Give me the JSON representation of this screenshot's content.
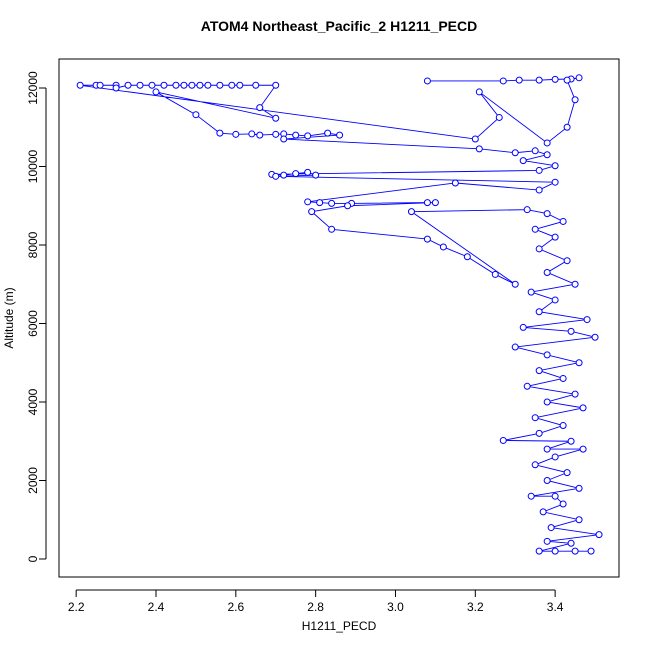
{
  "chart_data": {
    "type": "line",
    "title": "ATOM4 Northeast_Pacific_2 H1211_PECD",
    "x_label": "H1211_PECD",
    "y_label": "Altitude (m)",
    "color": "#0000ff",
    "markers": true,
    "xlim": [
      2.157,
      3.56
    ],
    "ylim": [
      -459,
      12739
    ],
    "xticks": [
      2.2,
      2.4,
      2.6,
      2.8,
      {
        "value": 3,
        "label": "3.0"
      },
      3.2,
      3.4
    ],
    "yticks": [
      0,
      2000,
      4000,
      6000,
      8000,
      10000,
      12000
    ],
    "x": [
      3.08,
      3.27,
      3.31,
      3.36,
      3.4,
      3.44,
      3.46,
      3.43,
      3.45,
      3.43,
      3.38,
      3.21,
      3.26,
      3.2,
      2.21,
      2.25,
      2.26,
      2.3,
      2.3,
      2.33,
      2.36,
      2.39,
      2.42,
      2.45,
      2.47,
      2.49,
      2.51,
      2.53,
      2.56,
      2.59,
      2.61,
      2.65,
      2.7,
      2.66,
      2.7,
      2.4,
      2.5,
      2.56,
      2.6,
      2.64,
      2.66,
      2.7,
      2.72,
      2.75,
      2.78,
      2.83,
      2.86,
      2.72,
      3.21,
      3.3,
      3.35,
      3.38,
      3.32,
      3.4,
      3.36,
      2.69,
      2.72,
      2.75,
      2.78,
      2.8,
      2.7,
      3.4,
      3.36,
      3.15,
      2.78,
      2.81,
      2.84,
      2.89,
      3.08,
      3.1,
      2.88,
      2.79,
      2.84,
      3.08,
      3.12,
      3.18,
      3.25,
      3.3,
      3.04,
      3.33,
      3.38,
      3.42,
      3.35,
      3.4,
      3.36,
      3.43,
      3.38,
      3.45,
      3.34,
      3.4,
      3.36,
      3.48,
      3.32,
      3.44,
      3.5,
      3.3,
      3.38,
      3.46,
      3.36,
      3.42,
      3.33,
      3.45,
      3.38,
      3.47,
      3.35,
      3.42,
      3.36,
      3.27,
      3.44,
      3.38,
      3.47,
      3.4,
      3.35,
      3.43,
      3.38,
      3.46,
      3.34,
      3.4,
      3.42,
      3.37,
      3.46,
      3.39,
      3.51,
      3.38,
      3.44,
      3.36,
      3.4,
      3.45,
      3.49
    ],
    "values": [
      12180,
      12180,
      12200,
      12200,
      12220,
      12230,
      12260,
      12200,
      11700,
      11000,
      10600,
      11900,
      11250,
      10700,
      12070,
      12070,
      12070,
      12070,
      12000,
      12070,
      12070,
      12070,
      12070,
      12070,
      12070,
      12070,
      12070,
      12070,
      12070,
      12070,
      12070,
      12070,
      12070,
      11500,
      11230,
      11900,
      11320,
      10850,
      10820,
      10830,
      10800,
      10820,
      10830,
      10800,
      10780,
      10850,
      10800,
      10700,
      10450,
      10350,
      10400,
      10300,
      10150,
      10020,
      9900,
      9800,
      9780,
      9820,
      9850,
      9780,
      9750,
      9600,
      9400,
      9580,
      9100,
      9080,
      9060,
      9060,
      9080,
      9080,
      9000,
      8850,
      8400,
      8150,
      7950,
      7700,
      7250,
      7000,
      8850,
      8900,
      8800,
      8600,
      8400,
      8200,
      7900,
      7600,
      7300,
      7000,
      6800,
      6600,
      6300,
      6100,
      5900,
      5800,
      5650,
      5400,
      5200,
      5000,
      4800,
      4600,
      4400,
      4200,
      4000,
      3850,
      3600,
      3400,
      3200,
      3020,
      3000,
      2800,
      2800,
      2600,
      2400,
      2200,
      2000,
      1800,
      1600,
      1600,
      1400,
      1200,
      1000,
      800,
      620,
      450,
      400,
      200,
      200,
      200,
      200
    ]
  }
}
